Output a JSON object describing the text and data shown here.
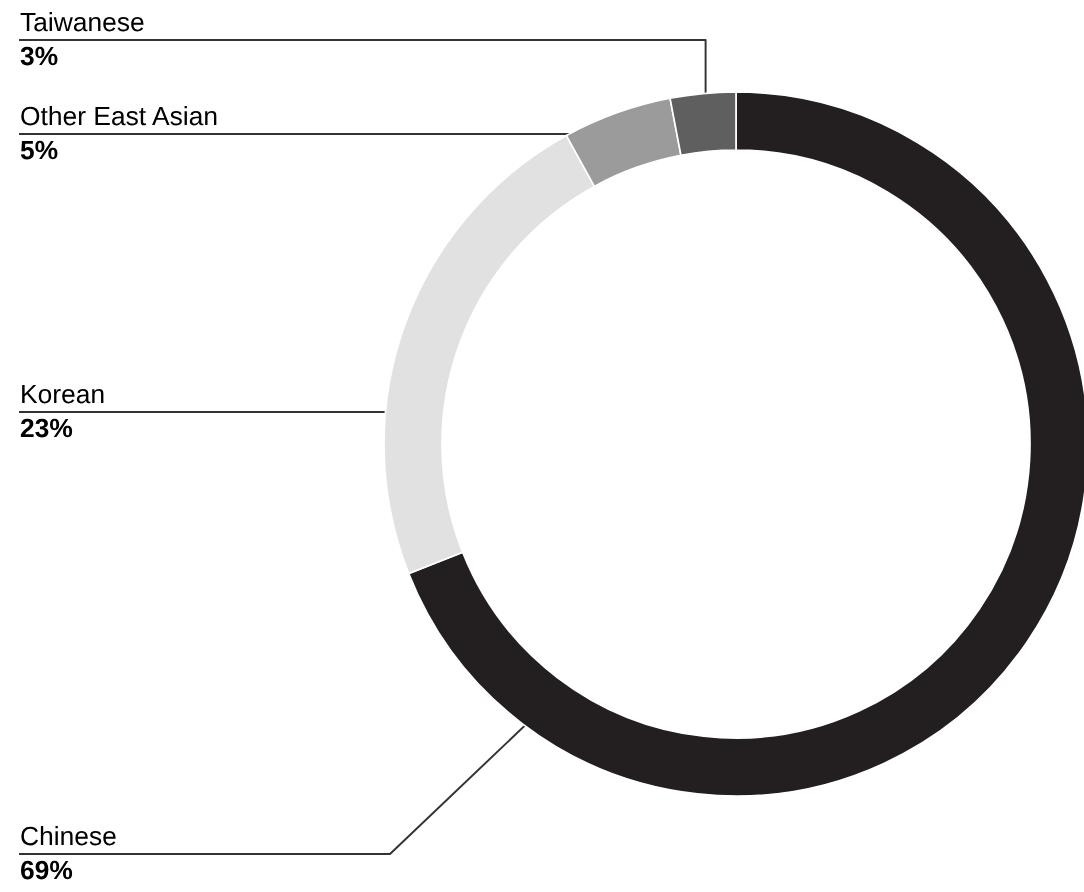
{
  "chart_data": {
    "type": "donut",
    "categories": [
      "Chinese",
      "Korean",
      "Other East Asian",
      "Taiwanese"
    ],
    "values": [
      69,
      23,
      5,
      3
    ],
    "colors": [
      "#231f20",
      "#e1e1e1",
      "#9b9b9b",
      "#5f5f5f"
    ],
    "value_labels": [
      "69%",
      "23%",
      "5%",
      "3%"
    ]
  }
}
